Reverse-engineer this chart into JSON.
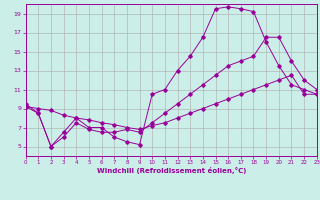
{
  "title": "",
  "xlabel": "Windchill (Refroidissement éolien,°C)",
  "ylabel": "",
  "bg_color": "#cceee8",
  "grid_color": "#aaaaaa",
  "line_color": "#990099",
  "xmin": 0,
  "xmax": 23,
  "ymin": 4,
  "ymax": 20,
  "yticks": [
    5,
    7,
    9,
    11,
    13,
    15,
    17,
    19
  ],
  "xticks": [
    0,
    1,
    2,
    3,
    4,
    5,
    6,
    7,
    8,
    9,
    10,
    11,
    12,
    13,
    14,
    15,
    16,
    17,
    18,
    19,
    20,
    21,
    22,
    23
  ],
  "series": [
    {
      "x": [
        0,
        1,
        2,
        3,
        4,
        5,
        6,
        7,
        8,
        9,
        10,
        11,
        12,
        13,
        14,
        15,
        16,
        17,
        18,
        19,
        20,
        21,
        22,
        23
      ],
      "y": [
        9.5,
        8.5,
        5.0,
        6.5,
        8.0,
        7.0,
        7.0,
        6.0,
        5.5,
        5.2,
        10.5,
        11.0,
        13.0,
        14.5,
        16.5,
        19.5,
        19.7,
        19.5,
        19.2,
        16.0,
        13.5,
        11.5,
        11.0,
        10.5
      ]
    },
    {
      "x": [
        0,
        1,
        2,
        3,
        4,
        5,
        6,
        7,
        8,
        9,
        10,
        11,
        12,
        13,
        14,
        15,
        16,
        17,
        18,
        19,
        20,
        21,
        22,
        23
      ],
      "y": [
        9.2,
        9.0,
        8.8,
        8.3,
        8.0,
        7.8,
        7.5,
        7.3,
        7.0,
        6.8,
        7.2,
        7.5,
        8.0,
        8.5,
        9.0,
        9.5,
        10.0,
        10.5,
        11.0,
        11.5,
        12.0,
        12.5,
        10.5,
        10.5
      ]
    },
    {
      "x": [
        0,
        1,
        2,
        3,
        4,
        5,
        6,
        7,
        8,
        9,
        10,
        11,
        12,
        13,
        14,
        15,
        16,
        17,
        18,
        19,
        20,
        21,
        22,
        23
      ],
      "y": [
        9.2,
        8.5,
        5.0,
        6.0,
        7.5,
        6.8,
        6.5,
        6.5,
        6.8,
        6.5,
        7.5,
        8.5,
        9.5,
        10.5,
        11.5,
        12.5,
        13.5,
        14.0,
        14.5,
        16.5,
        16.5,
        14.0,
        12.0,
        11.0
      ]
    }
  ]
}
